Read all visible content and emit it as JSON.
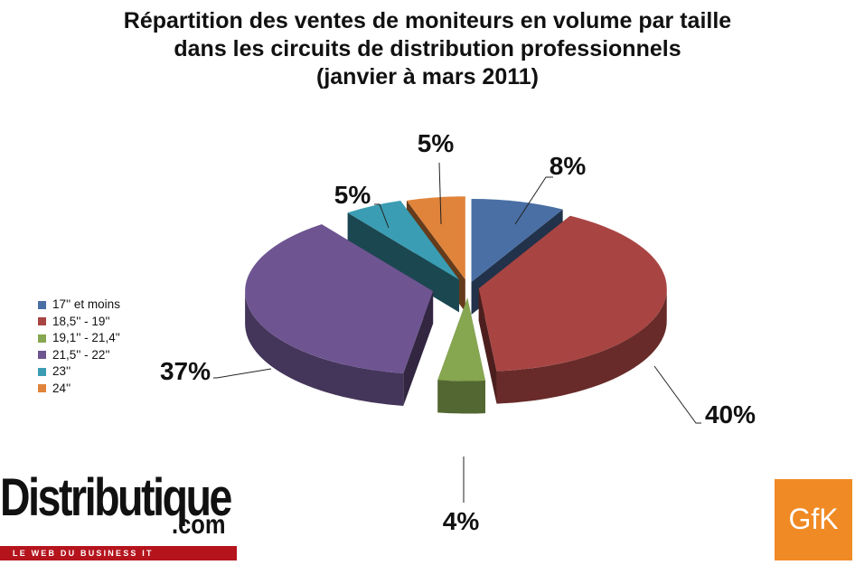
{
  "chart_data": {
    "type": "pie",
    "title": "Répartition des ventes de moniteurs en volume par taille",
    "title_line2": "dans les circuits de distribution professionnels",
    "subtitle": "(janvier à mars 2011)",
    "categories": [
      "17'' et moins",
      "18,5'' - 19''",
      "19,1'' - 21,4''",
      "21,5'' - 22''",
      "23''",
      "24''"
    ],
    "values": [
      8,
      40,
      4,
      37,
      5,
      5
    ],
    "value_labels": [
      "8%",
      "40%",
      "4%",
      "37%",
      "5%",
      "5%"
    ],
    "colors": [
      "#4a6fa5",
      "#a84543",
      "#86a650",
      "#6e5591",
      "#3b9db3",
      "#e0843b"
    ],
    "style": "3d exploded pie",
    "legend_position": "left"
  },
  "logos": {
    "left_word": "Distributique",
    "left_suffix": ".com",
    "left_tagline": "LE WEB DU BUSINESS IT",
    "right": "GfK"
  }
}
